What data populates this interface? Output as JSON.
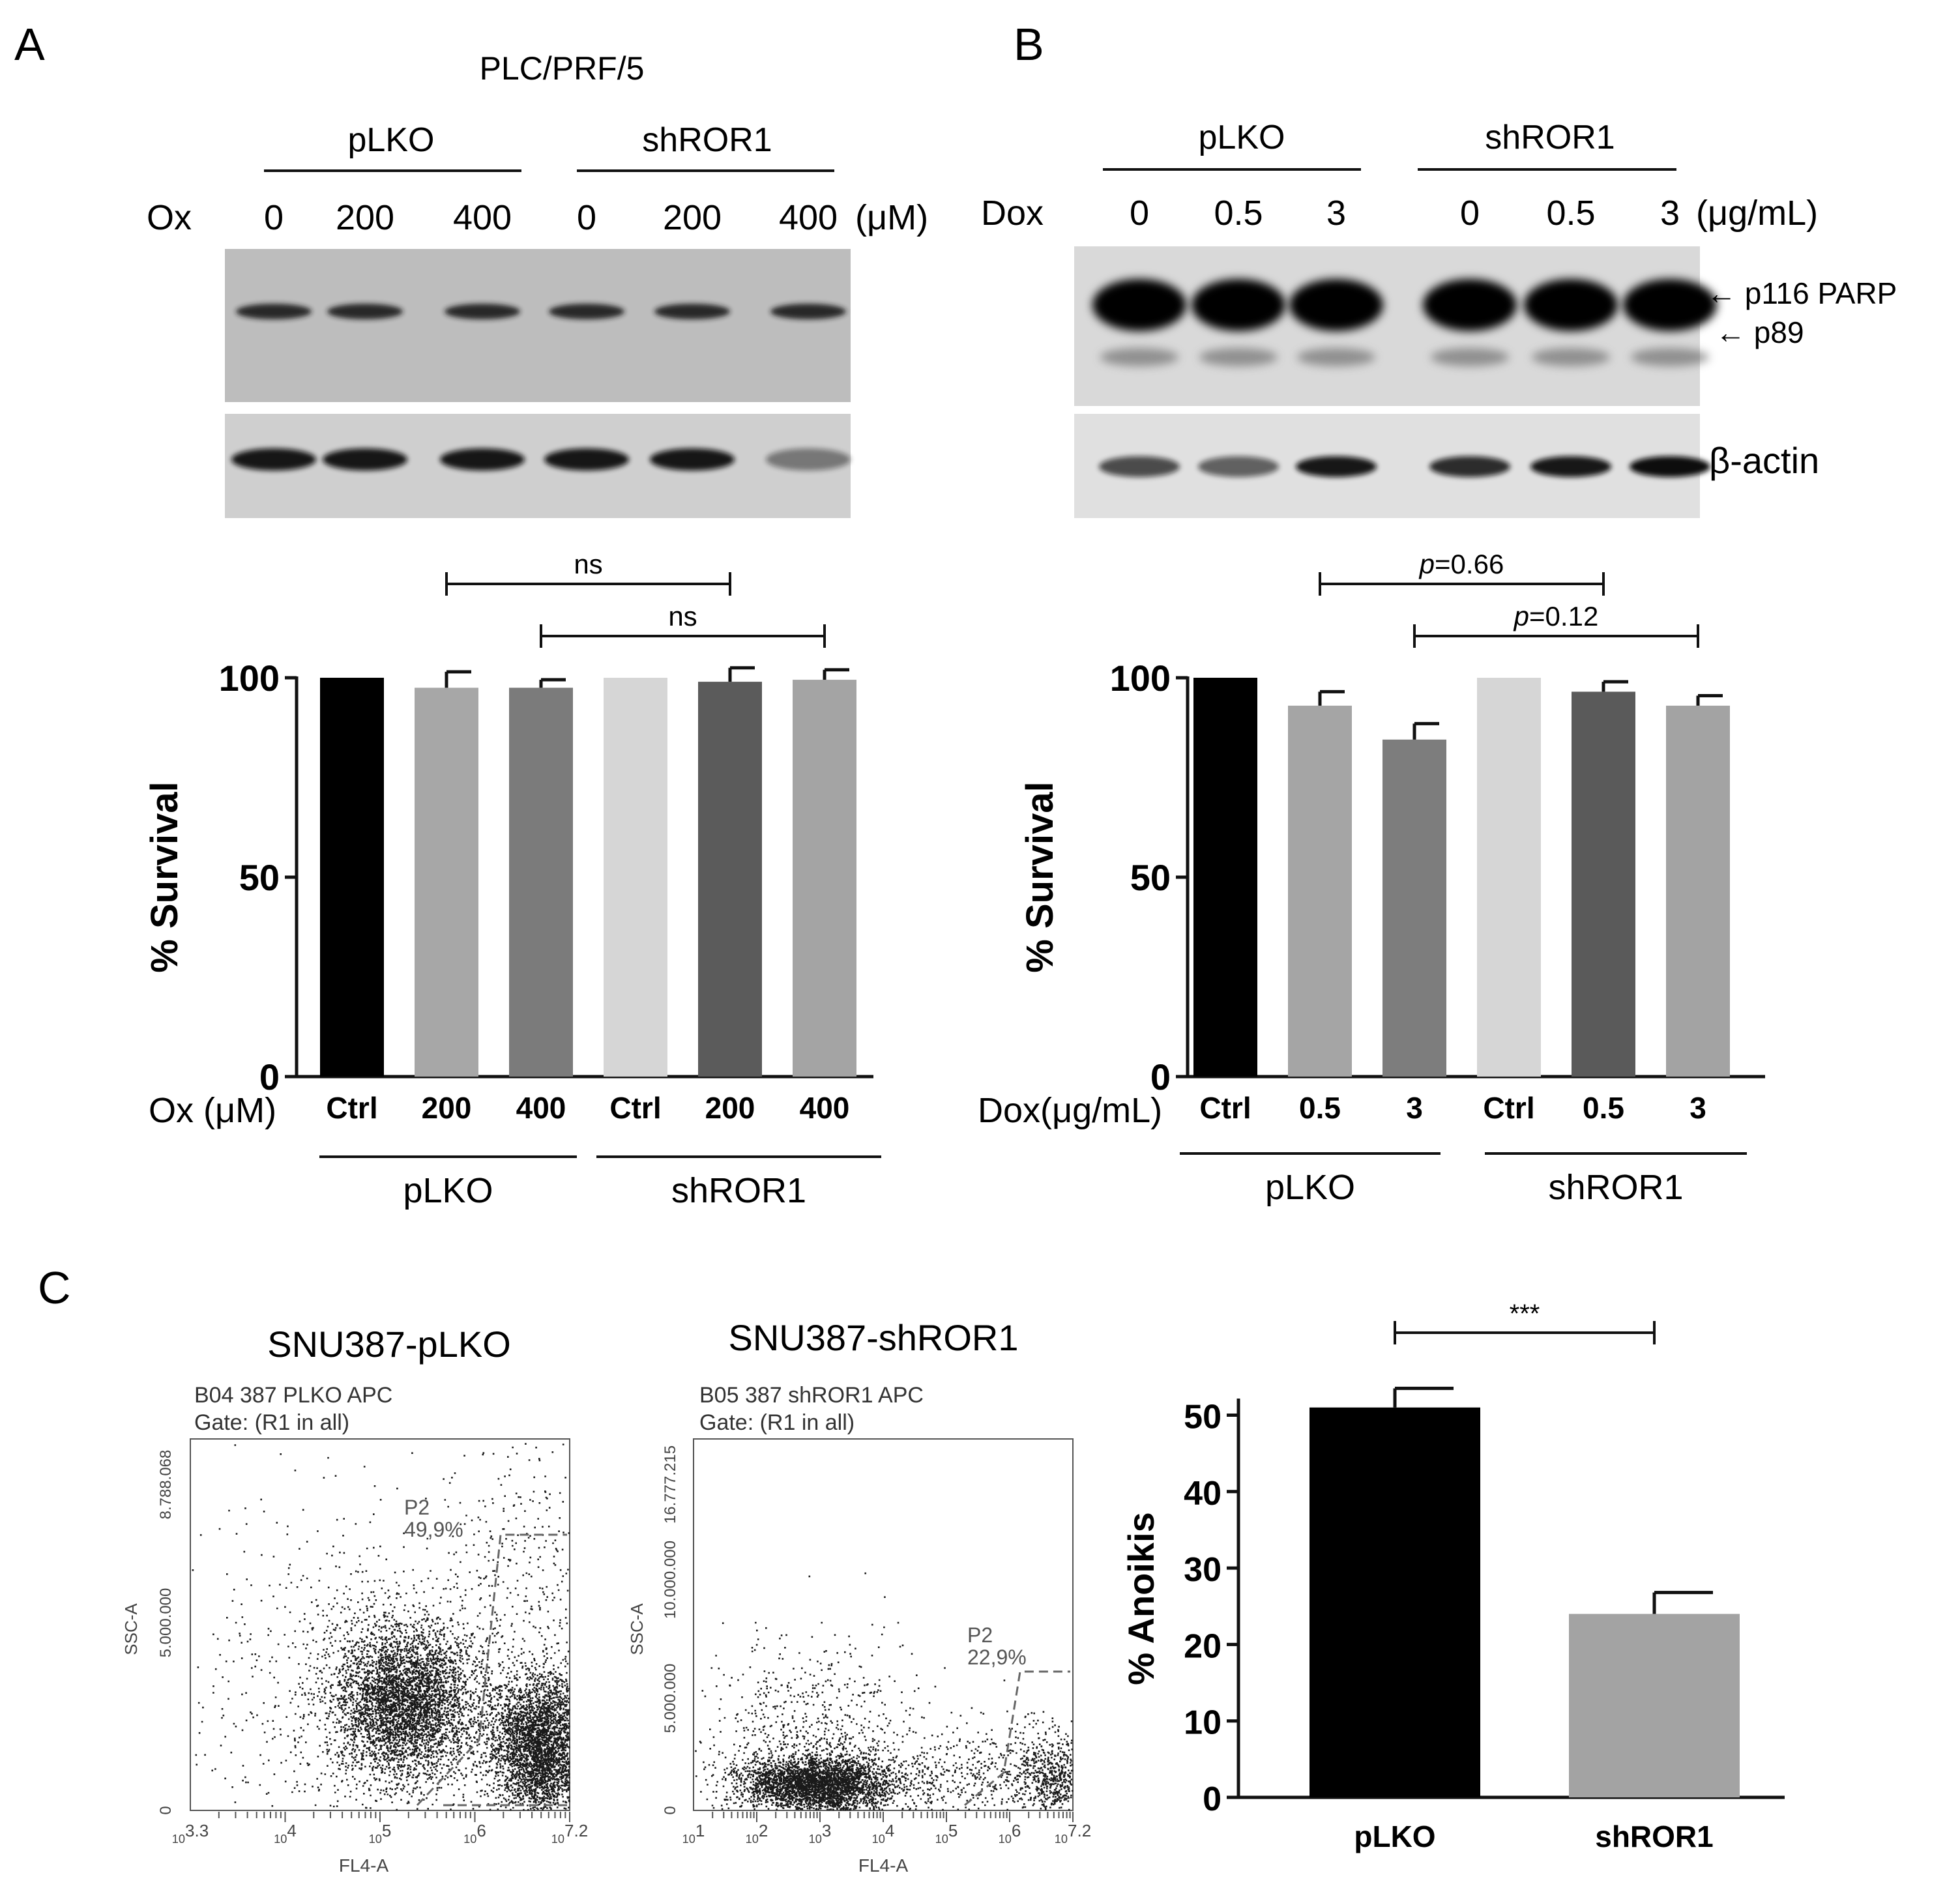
{
  "panels": {
    "A": {
      "letter": "A",
      "cell_line": "PLC/PRF/5",
      "groups": [
        "pLKO",
        "shROR1"
      ],
      "treatment_label": "Ox",
      "doses": [
        "0",
        "200",
        "400",
        "0",
        "200",
        "400"
      ],
      "unit": "(μM)",
      "blot_colors": [
        "#bcbcbc",
        "#cfcfcf"
      ]
    },
    "B": {
      "letter": "B",
      "groups": [
        "pLKO",
        "shROR1"
      ],
      "treatment_label": "Dox",
      "doses": [
        "0",
        "0.5",
        "3",
        "0",
        "0.5",
        "3"
      ],
      "unit": "(μg/mL)",
      "blot_labels": [
        "← p116 PARP",
        "← p89",
        "β-actin"
      ]
    },
    "C": {
      "letter": "C",
      "flow": [
        {
          "title": "SNU387-pLKO",
          "header1": "B04 387 PLKO APC",
          "header2": "Gate: (R1 in all)",
          "ymax_label": "8.788.068",
          "ymid_label": "5.000.000",
          "yzero_label": "0",
          "ylabel": "SSC-A",
          "xlabel": "FL4-A",
          "xticks": [
            "10^3.3",
            "10^4",
            "10^5",
            "10^6",
            "10^7.2"
          ],
          "gate_name": "P2",
          "gate_pct": "49,9%"
        },
        {
          "title": "SNU387-shROR1",
          "header1": "B05 387 shROR1 APC",
          "header2": "Gate: (R1 in all)",
          "ymax_label": "16.777.215",
          "ymid_label": "10.000.000",
          "ylow_label": "5.000.000",
          "yzero_label": "0",
          "ylabel": "SSC-A",
          "xlabel": "FL4-A",
          "xticks": [
            "10^1",
            "10^2",
            "10^3",
            "10^4",
            "10^5",
            "10^6",
            "10^7.2"
          ],
          "gate_name": "P2",
          "gate_pct": "22,9%"
        }
      ]
    }
  },
  "chart_data": [
    {
      "type": "bar",
      "panel": "A",
      "categories": [
        "Ctrl",
        "200",
        "400",
        "Ctrl",
        "200",
        "400"
      ],
      "groups": [
        "pLKO",
        "shROR1"
      ],
      "xprefix": "Ox (μM)",
      "values": [
        100,
        97.5,
        97.5,
        100,
        99,
        99.5
      ],
      "errors": [
        0,
        4,
        2,
        0,
        3.5,
        2.5
      ],
      "colors": [
        "#000000",
        "#a7a7a7",
        "#7b7b7b",
        "#d6d6d6",
        "#5b5b5b",
        "#a4a4a4"
      ],
      "ylabel": "% Survival",
      "ylim": [
        0,
        100
      ],
      "yticks": [
        "0",
        "50",
        "100"
      ],
      "comparisons": [
        {
          "from": 1,
          "to": 4,
          "label": "ns"
        },
        {
          "from": 2,
          "to": 5,
          "label": "ns"
        }
      ]
    },
    {
      "type": "bar",
      "panel": "B",
      "categories": [
        "Ctrl",
        "0.5",
        "3",
        "Ctrl",
        "0.5",
        "3"
      ],
      "groups": [
        "pLKO",
        "shROR1"
      ],
      "xprefix": "Dox(μg/mL)",
      "values": [
        100,
        93,
        84.5,
        100,
        96.5,
        93
      ],
      "errors": [
        0,
        3.5,
        4,
        0,
        2.5,
        2.5
      ],
      "colors": [
        "#000000",
        "#a5a5a5",
        "#7d7d7d",
        "#d6d6d6",
        "#5a5a5a",
        "#a3a3a3"
      ],
      "ylabel": "% Survival",
      "ylim": [
        0,
        100
      ],
      "yticks": [
        "0",
        "50",
        "100"
      ],
      "comparisons": [
        {
          "from": 1,
          "to": 4,
          "label": "p=0.66"
        },
        {
          "from": 2,
          "to": 5,
          "label": "p=0.12"
        }
      ]
    },
    {
      "type": "bar",
      "panel": "C",
      "categories": [
        "pLKO",
        "shROR1"
      ],
      "values": [
        51,
        24
      ],
      "errors": [
        2.5,
        2.8
      ],
      "colors": [
        "#000000",
        "#a3a3a3"
      ],
      "ylabel": "% Anoikis",
      "ylim": [
        0,
        52
      ],
      "yticks": [
        "0",
        "10",
        "20",
        "30",
        "40",
        "50"
      ],
      "comparisons": [
        {
          "from": 0,
          "to": 1,
          "label": "***"
        }
      ]
    }
  ]
}
